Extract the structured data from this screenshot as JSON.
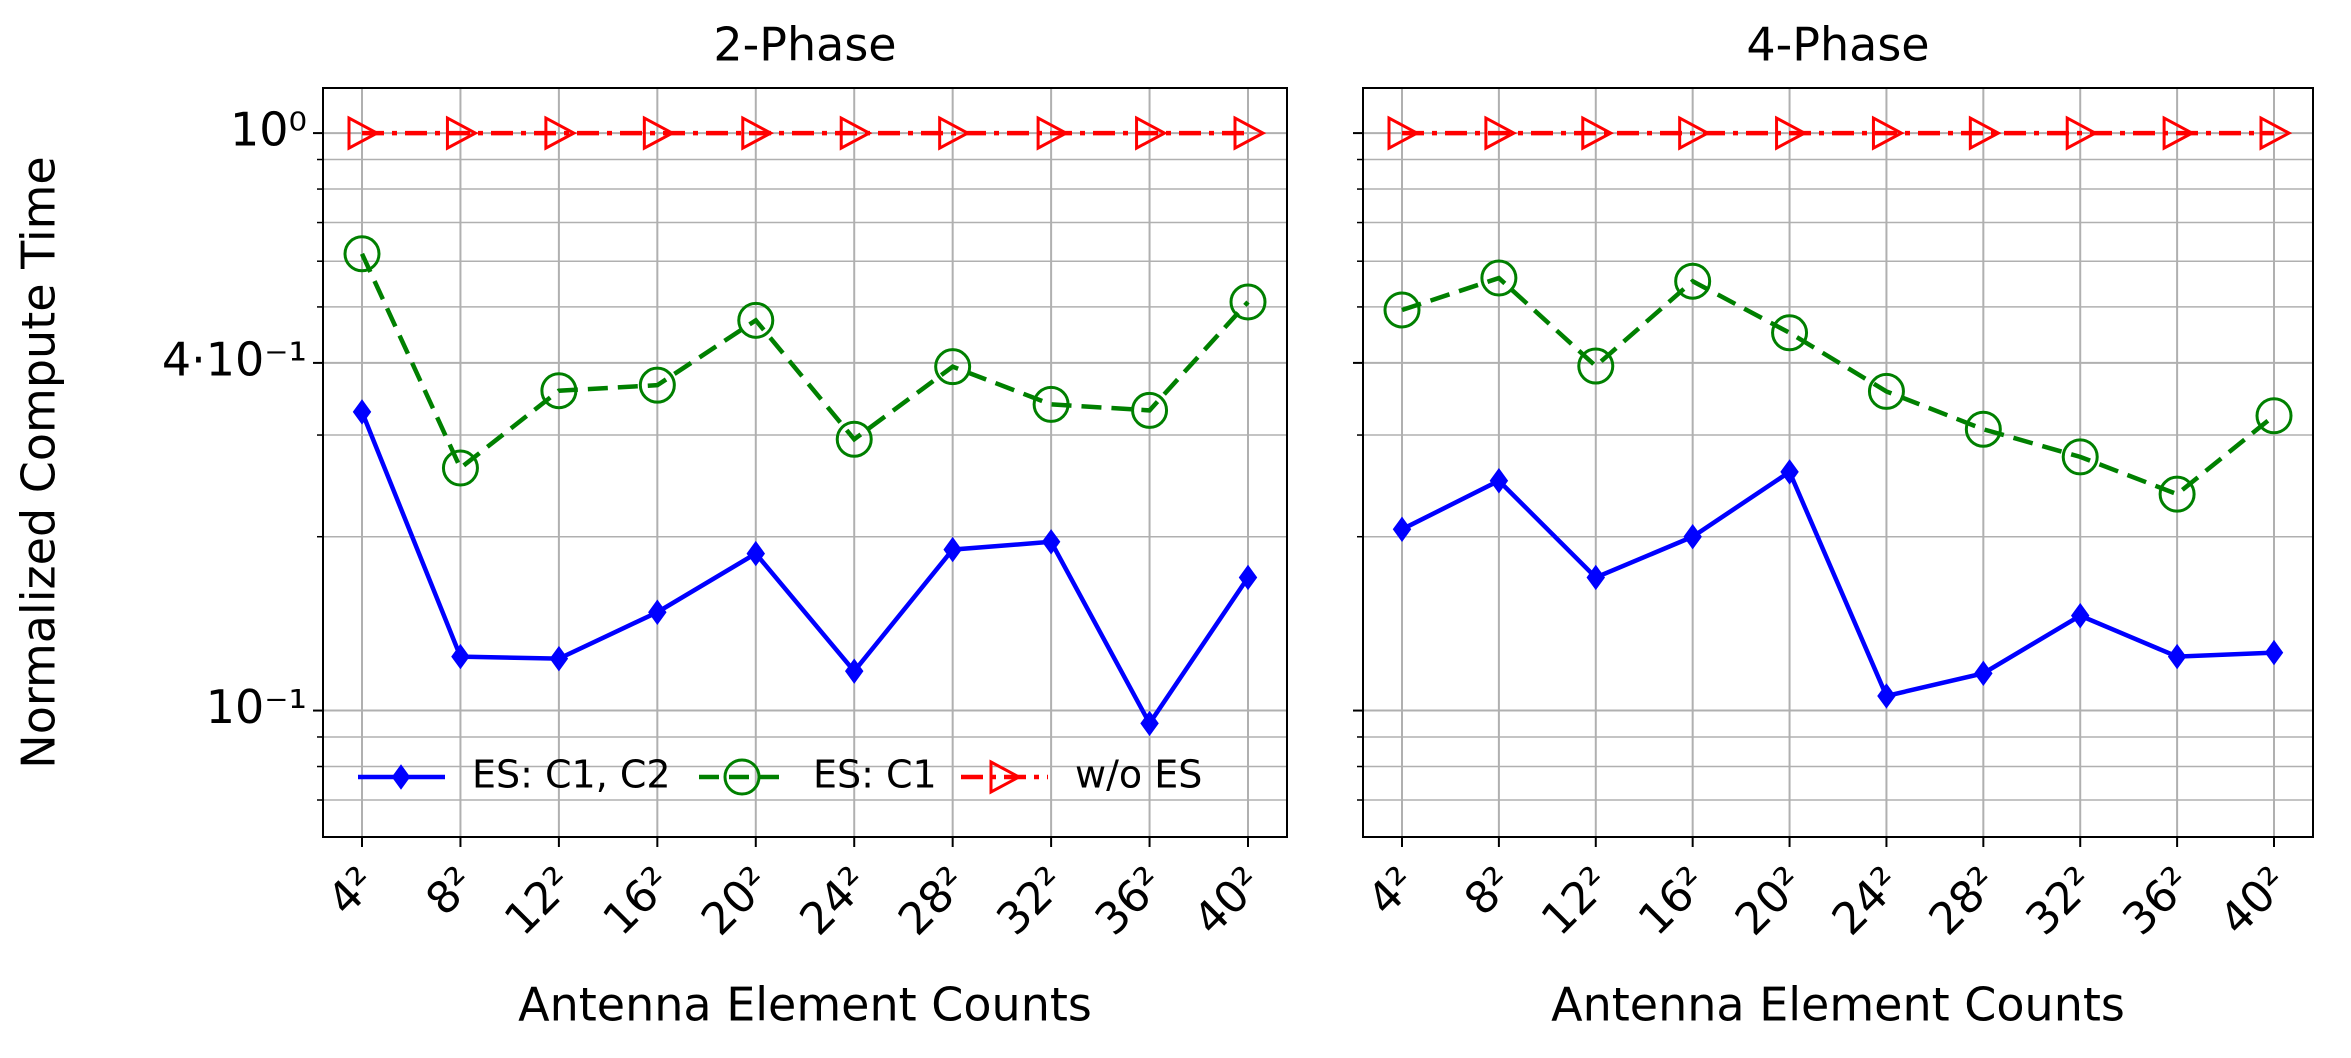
{
  "chart_data": [
    {
      "type": "line",
      "title": "2-Phase",
      "x_label": "Antenna Element Counts",
      "y_label": "Normalized Compute Time",
      "categories": [
        "4²",
        "8²",
        "12²",
        "16²",
        "20²",
        "24²",
        "28²",
        "32²",
        "36²",
        "40²"
      ],
      "log_scale": true,
      "grid": true,
      "legend": "lower left",
      "ytick_labels": true,
      "ylim": [
        0.0604,
        1.197
      ],
      "yticks": [
        {
          "value": 1,
          "label": "10⁰"
        },
        {
          "value": 0.4,
          "label": "4·10⁻¹"
        },
        {
          "value": 0.1,
          "label": "10⁻¹"
        }
      ],
      "minor_yticks": [
        0.07,
        0.08,
        0.09,
        0.2,
        0.3,
        0.5,
        0.6,
        0.7,
        0.8,
        0.9
      ],
      "series": [
        {
          "name": "ES: C1, C2",
          "color": "#0000ff",
          "marker": "diamond",
          "linestyle": "solid",
          "values": [
            0.329,
            0.124,
            0.123,
            0.148,
            0.187,
            0.117,
            0.19,
            0.196,
            0.095,
            0.17
          ]
        },
        {
          "name": "ES: C1",
          "color": "#008000",
          "marker": "circle",
          "linestyle": "dashed",
          "values": [
            0.618,
            0.263,
            0.358,
            0.366,
            0.474,
            0.295,
            0.394,
            0.339,
            0.331,
            0.51
          ]
        },
        {
          "name": "w/o ES",
          "color": "#ff0000",
          "marker": "triangle",
          "linestyle": "dashdot",
          "values": [
            1,
            1,
            1,
            1,
            1,
            1,
            1,
            1,
            1,
            1
          ]
        }
      ]
    },
    {
      "type": "line",
      "title": "4-Phase",
      "x_label": "Antenna Element Counts",
      "categories": [
        "4²",
        "8²",
        "12²",
        "16²",
        "20²",
        "24²",
        "28²",
        "32²",
        "36²",
        "40²"
      ],
      "log_scale": true,
      "grid": true,
      "ytick_labels": false,
      "ylim": [
        0.0604,
        1.197
      ],
      "yticks": [
        1,
        0.4,
        0.1
      ],
      "minor_yticks": [
        0.07,
        0.08,
        0.09,
        0.2,
        0.3,
        0.5,
        0.6,
        0.7,
        0.8,
        0.9
      ],
      "series": [
        {
          "color": "#0000ff",
          "marker": "diamond",
          "linestyle": "solid",
          "values": [
            0.206,
            0.25,
            0.17,
            0.2,
            0.259,
            0.106,
            0.116,
            0.146,
            0.124,
            0.126
          ]
        },
        {
          "color": "#008000",
          "marker": "circle",
          "linestyle": "dashed",
          "values": [
            0.494,
            0.561,
            0.395,
            0.554,
            0.451,
            0.357,
            0.307,
            0.275,
            0.237,
            0.324
          ]
        },
        {
          "color": "#ff0000",
          "marker": "triangle",
          "linestyle": "dashdot",
          "values": [
            1,
            1,
            1,
            1,
            1,
            1,
            1,
            1,
            1,
            1
          ]
        }
      ]
    }
  ]
}
